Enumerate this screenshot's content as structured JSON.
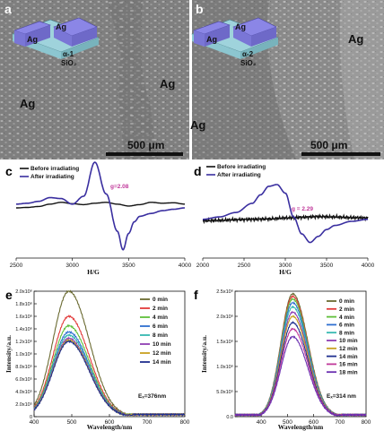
{
  "panel_a": {
    "letter": "a",
    "device_electrodes": [
      "Ag",
      "Ag"
    ],
    "device_layer": "α-1",
    "device_substrate": "SiO₂",
    "electrode_labels": [
      "Ag",
      "Ag"
    ],
    "scale_bar": "500 μm"
  },
  "panel_b": {
    "letter": "b",
    "device_electrodes": [
      "Ag",
      "Ag"
    ],
    "device_layer": "α-2",
    "device_substrate": "SiO₂",
    "electrode_labels": [
      "Ag",
      "Ag"
    ],
    "scale_bar": "500 μm"
  },
  "colors": {
    "before": "#111111",
    "after": "#3a2fa0"
  },
  "chart_data": [
    {
      "panel": "c",
      "type": "line",
      "xlabel": "H/G",
      "xlim": [
        2500,
        4000
      ],
      "x_ticks": [
        "2500",
        "3000",
        "3500",
        "4000"
      ],
      "legend_position": "top-left",
      "annotation": "g=2.08",
      "series": [
        {
          "name": "Before irradiating",
          "x": [
            2500,
            2600,
            2700,
            2800,
            2900,
            3000,
            3100,
            3200,
            3300,
            3400,
            3500,
            3600,
            3700,
            3800,
            3900,
            4000
          ],
          "values": [
            0.0,
            0.01,
            0.03,
            0.08,
            0.12,
            0.09,
            0.07,
            0.1,
            0.12,
            0.08,
            0.04,
            0.07,
            0.12,
            0.1,
            0.11,
            0.08
          ]
        },
        {
          "name": "After irradiating",
          "x": [
            2500,
            2600,
            2700,
            2800,
            2900,
            3000,
            3100,
            3200,
            3300,
            3400,
            3450,
            3500,
            3550,
            3600,
            3700,
            3800,
            3900,
            4000
          ],
          "values": [
            0.08,
            0.1,
            0.14,
            0.22,
            0.2,
            0.08,
            0.25,
            0.98,
            0.3,
            -0.5,
            -0.9,
            -0.55,
            -0.3,
            -0.18,
            -0.12,
            -0.06,
            -0.03,
            0.0
          ]
        }
      ]
    },
    {
      "panel": "d",
      "type": "line",
      "xlabel": "H/G",
      "xlim": [
        2000,
        4000
      ],
      "x_ticks": [
        "2000",
        "2500",
        "3000",
        "3500",
        "4000"
      ],
      "legend_position": "top-left",
      "annotation": "g = 2.29",
      "series": [
        {
          "name": "Before irradiating",
          "x": [
            2000,
            2200,
            2400,
            2600,
            2800,
            3000,
            3200,
            3400,
            3600,
            3800,
            4000
          ],
          "values": [
            -0.06,
            -0.05,
            -0.03,
            -0.02,
            -0.01,
            0.02,
            0.04,
            0.06,
            0.05,
            0.03,
            0.02
          ]
        },
        {
          "name": "After irradiating",
          "x": [
            2000,
            2200,
            2400,
            2600,
            2700,
            2800,
            2900,
            3000,
            3100,
            3200,
            3300,
            3400,
            3500,
            3600,
            3800,
            4000
          ],
          "values": [
            -0.02,
            0.05,
            0.18,
            0.45,
            0.7,
            0.95,
            1.0,
            0.75,
            0.05,
            -0.45,
            -0.7,
            -0.52,
            -0.32,
            -0.2,
            -0.08,
            -0.02
          ]
        }
      ]
    },
    {
      "panel": "e",
      "type": "line",
      "xlabel": "Wavelength/nm",
      "ylabel": "Intensity/a.u.",
      "xlim": [
        400,
        800
      ],
      "ylim": [
        0,
        20
      ],
      "x_ticks": [
        "400",
        "500",
        "600",
        "700",
        "800"
      ],
      "y_ticks": [
        "0",
        "2.0x10⁵",
        "4.0x10⁵",
        "6.0x10⁵",
        "8.0x10⁵",
        "1.0x10⁶",
        "1.2x10⁶",
        "1.4x10⁶",
        "1.6x10⁶",
        "1.8x10⁶",
        "2.0x10⁶"
      ],
      "peak_x": 492,
      "width": 70,
      "legend_position": "right",
      "excitation_label": "Eₓ=376nm",
      "series": [
        {
          "name": "0 min",
          "color": "#6b6b32",
          "peak": 20.0
        },
        {
          "name": "2 min",
          "color": "#e23a3a",
          "peak": 16.0
        },
        {
          "name": "4 min",
          "color": "#5fbf3a",
          "peak": 14.5
        },
        {
          "name": "6 min",
          "color": "#2f6fd0",
          "peak": 13.5
        },
        {
          "name": "8 min",
          "color": "#35b8b0",
          "peak": 13.0
        },
        {
          "name": "10 min",
          "color": "#8e3fb3",
          "peak": 12.5
        },
        {
          "name": "12 min",
          "color": "#c8a020",
          "peak": 12.2
        },
        {
          "name": "14 min",
          "color": "#1f2f8f",
          "peak": 12.0
        }
      ]
    },
    {
      "panel": "f",
      "type": "line",
      "xlabel": "Wavelength/nm",
      "ylabel": "Intensity/a.u.",
      "xlim": [
        300,
        800
      ],
      "ylim": [
        0,
        24
      ],
      "x_ticks": [
        "400",
        "500",
        "600",
        "700",
        "800"
      ],
      "y_ticks": [
        "0.0",
        "5.0x10⁵",
        "1.0x10⁶",
        "1.5x10⁶",
        "2.0x10⁶",
        "2.5x10⁶"
      ],
      "peak_x": 520,
      "width": 75,
      "legend_position": "right",
      "excitation_label": "Eₓ=314 nm",
      "series": [
        {
          "name": "0 min",
          "color": "#6b6b32",
          "peak": 23.5
        },
        {
          "name": "2 min",
          "color": "#e23a3a",
          "peak": 23.0
        },
        {
          "name": "4 min",
          "color": "#5fbf3a",
          "peak": 22.5
        },
        {
          "name": "6 min",
          "color": "#2f6fd0",
          "peak": 21.8
        },
        {
          "name": "8 min",
          "color": "#35b8b0",
          "peak": 21.0
        },
        {
          "name": "10 min",
          "color": "#8e3fb3",
          "peak": 20.0
        },
        {
          "name": "12 min",
          "color": "#c8a020",
          "peak": 19.2
        },
        {
          "name": "14 min",
          "color": "#1f2f8f",
          "peak": 18.0
        },
        {
          "name": "16 min",
          "color": "#c0389a",
          "peak": 16.8
        },
        {
          "name": "18 min",
          "color": "#6a2fb0",
          "peak": 15.3
        }
      ]
    }
  ]
}
